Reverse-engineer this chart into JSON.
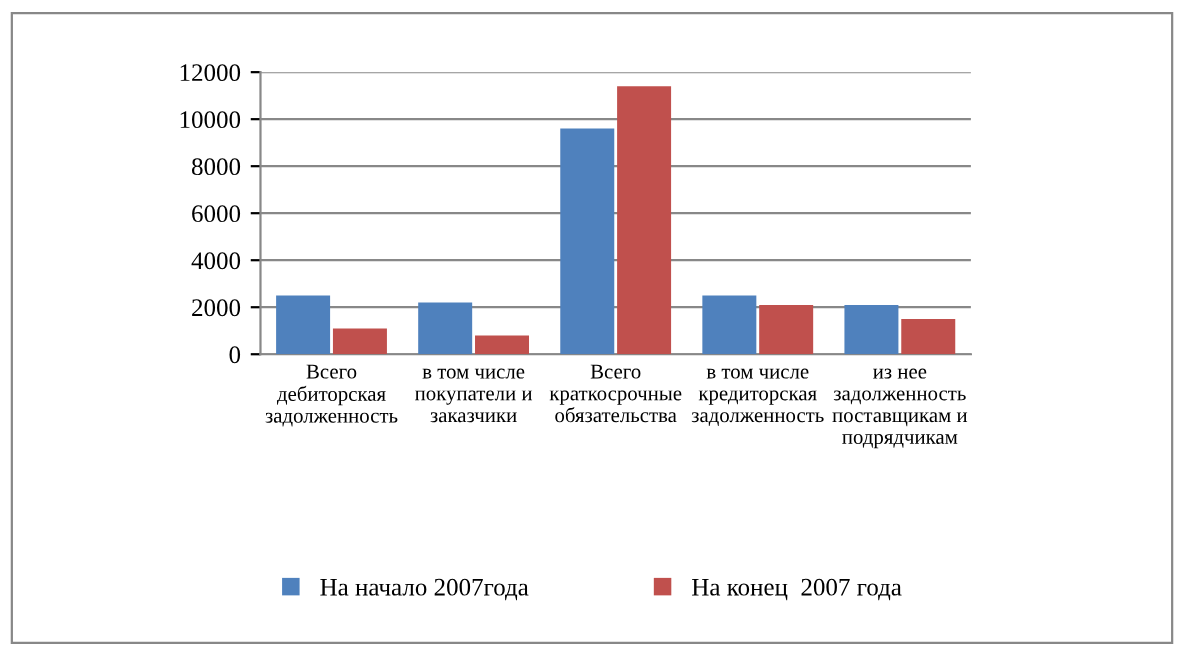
{
  "chart_data": {
    "type": "bar",
    "categories": [
      "Всего дебиторская задолженность",
      "в том числе покупатели и заказчики",
      "Всего краткосрочные обязательства",
      "в том числе кредиторская задолженность",
      "из нее задолженность поставщикам и подрядчикам"
    ],
    "series": [
      {
        "name": "На начало 2007года",
        "color": "#4f81bd",
        "values": [
          2500,
          2200,
          9600,
          2500,
          2100
        ]
      },
      {
        "name": "На конец  2007 года",
        "color": "#c0504d",
        "values": [
          1100,
          800,
          11400,
          2100,
          1500
        ]
      }
    ],
    "ylim": [
      0,
      12000
    ],
    "yticks": [
      0,
      2000,
      4000,
      6000,
      8000,
      10000,
      12000
    ],
    "grid": "y",
    "legend": "bottom"
  }
}
